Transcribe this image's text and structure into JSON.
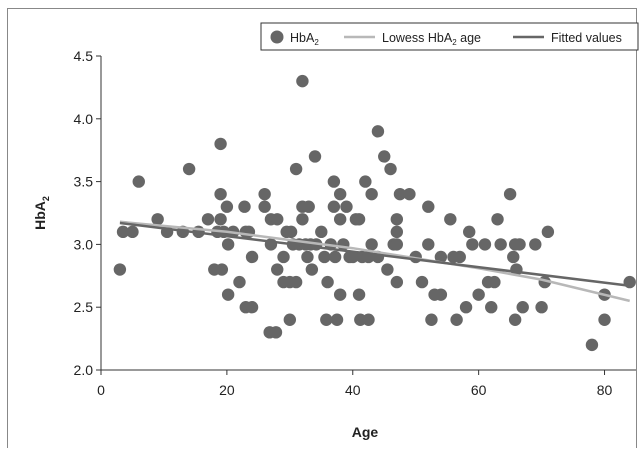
{
  "chart_data": {
    "type": "scatter",
    "xlabel": "Age",
    "ylabel": "HbA",
    "ylabel_sub": "2",
    "xlim": [
      0,
      85
    ],
    "ylim": [
      2.0,
      4.5
    ],
    "xticks": [
      0,
      20,
      40,
      60,
      80
    ],
    "yticks": [
      2.0,
      2.5,
      3.0,
      3.5,
      4.0,
      4.5
    ],
    "ytick_labels": [
      "2.0",
      "2.5",
      "3.0",
      "3.5",
      "4.0",
      "4.5"
    ],
    "grid": false,
    "legend_position": "top-right",
    "legend": [
      {
        "label": "HbA",
        "sub": "2",
        "kind": "marker"
      },
      {
        "label": "Lowess HbA",
        "sub": "2",
        "suffix": " age",
        "kind": "line-light"
      },
      {
        "label": "Fitted values",
        "sub": "",
        "suffix": "",
        "kind": "line-dark"
      }
    ],
    "colors": {
      "points": "#666666",
      "lowess": "#b8b8b8",
      "fitted": "#666666"
    },
    "series": [
      {
        "name": "HbA2",
        "kind": "scatter",
        "points": [
          [
            3,
            2.8
          ],
          [
            3.5,
            3.1
          ],
          [
            5,
            3.1
          ],
          [
            6,
            3.5
          ],
          [
            9,
            3.2
          ],
          [
            10.5,
            3.1
          ],
          [
            13,
            3.1
          ],
          [
            14,
            3.6
          ],
          [
            15.5,
            3.1
          ],
          [
            17,
            3.2
          ],
          [
            18,
            2.8
          ],
          [
            18.5,
            3.1
          ],
          [
            19,
            3.8
          ],
          [
            19,
            3.4
          ],
          [
            19,
            3.2
          ],
          [
            19.2,
            2.8
          ],
          [
            19.5,
            3.1
          ],
          [
            20,
            3.3
          ],
          [
            20.2,
            3.0
          ],
          [
            20.2,
            2.6
          ],
          [
            21,
            3.1
          ],
          [
            22,
            2.7
          ],
          [
            22.8,
            3.3
          ],
          [
            23,
            2.5
          ],
          [
            23,
            3.1
          ],
          [
            23.5,
            3.1
          ],
          [
            24,
            2.5
          ],
          [
            24,
            2.9
          ],
          [
            26,
            3.3
          ],
          [
            26,
            3.4
          ],
          [
            26.8,
            2.3
          ],
          [
            27,
            3.2
          ],
          [
            27,
            3.0
          ],
          [
            27.8,
            2.3
          ],
          [
            28,
            2.8
          ],
          [
            28,
            3.2
          ],
          [
            29,
            2.7
          ],
          [
            29,
            2.9
          ],
          [
            29.5,
            3.1
          ],
          [
            30,
            2.4
          ],
          [
            30,
            2.7
          ],
          [
            30.2,
            3.1
          ],
          [
            30.5,
            3.0
          ],
          [
            31,
            3.6
          ],
          [
            31,
            2.7
          ],
          [
            31.5,
            3.0
          ],
          [
            32,
            4.3
          ],
          [
            32,
            3.3
          ],
          [
            32,
            3.2
          ],
          [
            32.5,
            3.0
          ],
          [
            32.8,
            2.9
          ],
          [
            33,
            3.3
          ],
          [
            33.3,
            3.0
          ],
          [
            33.5,
            2.8
          ],
          [
            34,
            3.7
          ],
          [
            34.2,
            3.0
          ],
          [
            35,
            3.1
          ],
          [
            35.5,
            2.9
          ],
          [
            35.8,
            2.4
          ],
          [
            36,
            2.7
          ],
          [
            36.5,
            3.0
          ],
          [
            37,
            3.5
          ],
          [
            37,
            3.3
          ],
          [
            37.2,
            2.9
          ],
          [
            37.5,
            2.4
          ],
          [
            38,
            2.6
          ],
          [
            38,
            3.4
          ],
          [
            38,
            3.2
          ],
          [
            38.5,
            3.0
          ],
          [
            39,
            3.3
          ],
          [
            39.5,
            2.9
          ],
          [
            40,
            2.9
          ],
          [
            40.5,
            3.2
          ],
          [
            41,
            3.2
          ],
          [
            41,
            2.6
          ],
          [
            41.2,
            2.4
          ],
          [
            41.5,
            2.9
          ],
          [
            42,
            3.5
          ],
          [
            42.5,
            2.9
          ],
          [
            42.5,
            2.4
          ],
          [
            43,
            3.0
          ],
          [
            43,
            3.4
          ],
          [
            44,
            3.9
          ],
          [
            44,
            2.9
          ],
          [
            45,
            3.7
          ],
          [
            45.5,
            2.8
          ],
          [
            46,
            3.6
          ],
          [
            46.5,
            3.0
          ],
          [
            47,
            3.2
          ],
          [
            47,
            3.1
          ],
          [
            47,
            2.7
          ],
          [
            47,
            3.0
          ],
          [
            47.5,
            3.4
          ],
          [
            49,
            3.4
          ],
          [
            50,
            2.9
          ],
          [
            51,
            2.7
          ],
          [
            52,
            3.3
          ],
          [
            52,
            3.0
          ],
          [
            52.5,
            2.4
          ],
          [
            53,
            2.6
          ],
          [
            54,
            2.6
          ],
          [
            54,
            2.9
          ],
          [
            55.5,
            3.2
          ],
          [
            56,
            2.9
          ],
          [
            56.5,
            2.4
          ],
          [
            57,
            2.9
          ],
          [
            58,
            2.5
          ],
          [
            58.5,
            3.1
          ],
          [
            59,
            3.0
          ],
          [
            60,
            2.6
          ],
          [
            61,
            3.0
          ],
          [
            61.5,
            2.7
          ],
          [
            62,
            2.5
          ],
          [
            62.5,
            2.7
          ],
          [
            63,
            3.2
          ],
          [
            63.5,
            3.0
          ],
          [
            65,
            3.4
          ],
          [
            65.5,
            2.9
          ],
          [
            65.8,
            3.0
          ],
          [
            65.8,
            2.4
          ],
          [
            66,
            2.8
          ],
          [
            66.5,
            3.0
          ],
          [
            67,
            2.5
          ],
          [
            69,
            3.0
          ],
          [
            70,
            2.5
          ],
          [
            70.5,
            2.7
          ],
          [
            71,
            3.1
          ],
          [
            78,
            2.2
          ],
          [
            80,
            2.4
          ],
          [
            80,
            2.6
          ],
          [
            84,
            2.7
          ]
        ]
      },
      {
        "name": "Lowess HbA2 age",
        "kind": "line",
        "points": [
          [
            3,
            3.18
          ],
          [
            20,
            3.1
          ],
          [
            40,
            2.97
          ],
          [
            60,
            2.81
          ],
          [
            70,
            2.72
          ],
          [
            84,
            2.55
          ]
        ]
      },
      {
        "name": "Fitted values",
        "kind": "line",
        "points": [
          [
            3,
            3.17
          ],
          [
            84,
            2.67
          ]
        ]
      }
    ]
  }
}
